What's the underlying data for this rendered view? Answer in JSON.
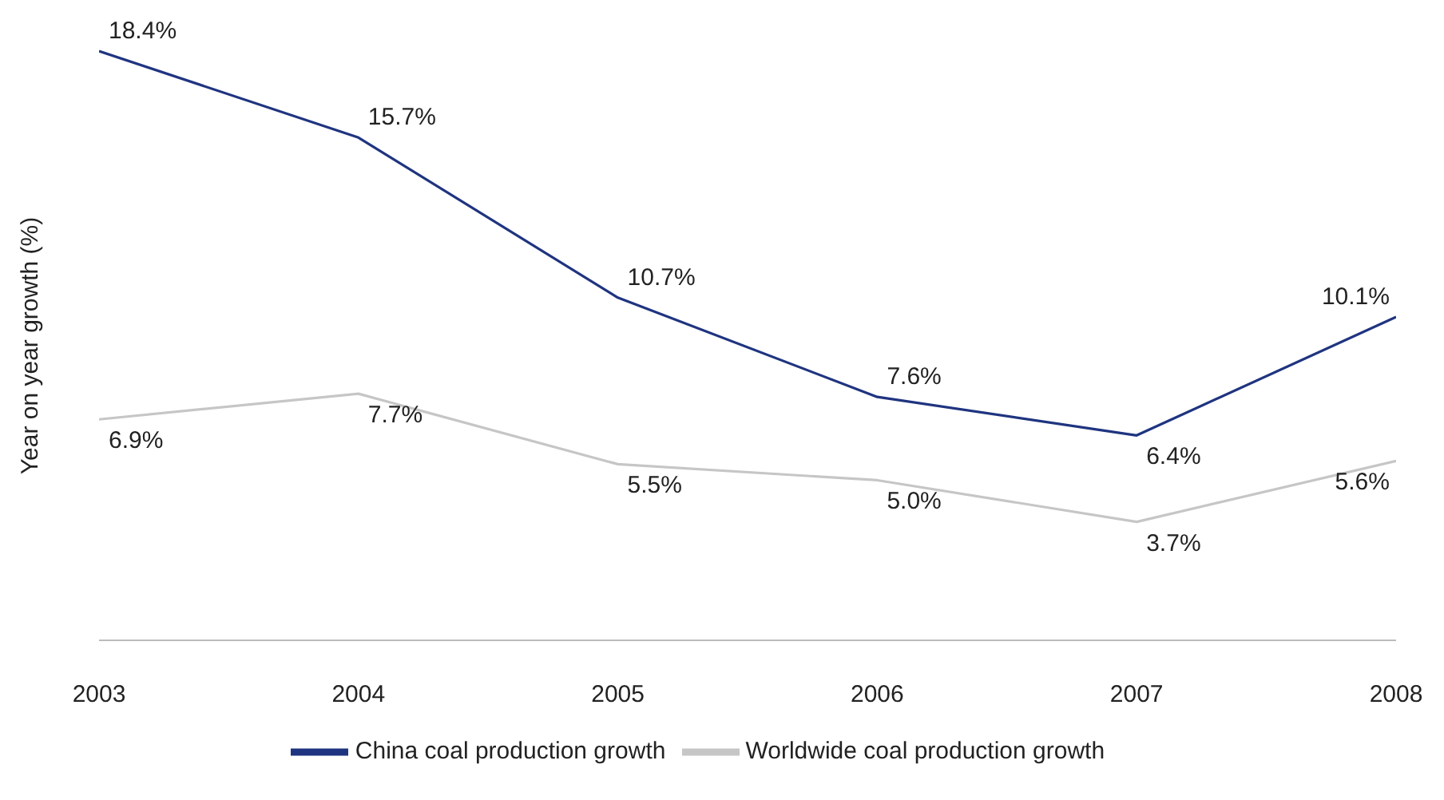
{
  "chart_data": {
    "type": "line",
    "ylabel": "Year on year growth (%)",
    "categories": [
      "2003",
      "2004",
      "2005",
      "2006",
      "2007",
      "2008"
    ],
    "tick_labels": "x",
    "grid": false,
    "legend": "bottom",
    "marker": "none",
    "series": [
      {
        "name": "China coal production growth",
        "color": "#1f3480",
        "values": [
          18.4,
          15.7,
          10.7,
          7.6,
          6.4,
          10.1
        ],
        "value_labels": [
          "18.4%",
          "15.7%",
          "10.7%",
          "7.6%",
          "6.4%",
          "10.1%"
        ]
      },
      {
        "name": "Worldwide coal production growth",
        "color": "#c6c6c6",
        "values": [
          6.9,
          7.7,
          5.5,
          5.0,
          3.7,
          5.6
        ],
        "value_labels": [
          "6.9%",
          "7.7%",
          "5.5%",
          "5.0%",
          "3.7%",
          "5.6%"
        ]
      }
    ]
  }
}
